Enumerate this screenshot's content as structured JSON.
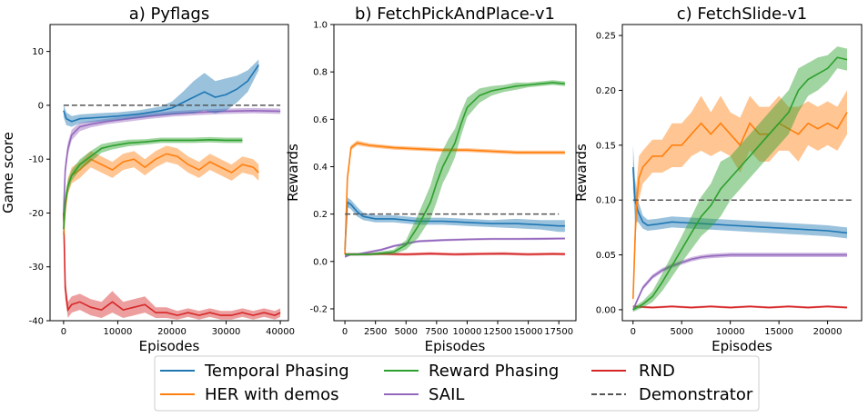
{
  "colors": {
    "temporal_phasing": "#1f77b4",
    "her_with_demos": "#ff7f0e",
    "reward_phasing": "#2ca02c",
    "sail": "#9467bd",
    "rnd": "#d62728",
    "demonstrator": "#555555"
  },
  "legend": {
    "entries": [
      {
        "key": "temporal_phasing",
        "label": "Temporal Phasing",
        "style": "solid"
      },
      {
        "key": "her_with_demos",
        "label": "HER with demos",
        "style": "solid"
      },
      {
        "key": "reward_phasing",
        "label": "Reward Phasing",
        "style": "solid"
      },
      {
        "key": "sail",
        "label": "SAIL",
        "style": "solid"
      },
      {
        "key": "rnd",
        "label": "RND",
        "style": "solid"
      },
      {
        "key": "demonstrator",
        "label": "Demonstrator",
        "style": "dashed"
      }
    ]
  },
  "chart_data": [
    {
      "type": "line",
      "title": "a) Pyflags",
      "xlabel": "Episodes",
      "ylabel": "Game score",
      "xlim": [
        -2500,
        41500
      ],
      "ylim": [
        -40,
        15
      ],
      "xticks": [
        0,
        10000,
        20000,
        30000,
        40000
      ],
      "yticks": [
        -40,
        -30,
        -20,
        -10,
        0,
        10
      ],
      "series": [
        {
          "key": "temporal_phasing",
          "name": "Temporal Phasing",
          "x": [
            0,
            500,
            1500,
            3000,
            6000,
            10000,
            14000,
            18000,
            20000,
            22000,
            24000,
            26000,
            28000,
            30000,
            32000,
            34000,
            35000,
            36000
          ],
          "y": [
            -1,
            -2.5,
            -3,
            -2.5,
            -2.3,
            -2,
            -1.6,
            -1,
            -0.5,
            0.5,
            1.5,
            2.5,
            1.5,
            2,
            3,
            4.5,
            6,
            7.5
          ],
          "band": [
            1.2,
            1.2,
            1,
            0.8,
            0.8,
            0.7,
            0.7,
            0.8,
            1.2,
            2,
            3,
            3.5,
            3,
            3,
            2.5,
            2,
            1.5,
            1
          ]
        },
        {
          "key": "her_with_demos",
          "name": "HER with demos",
          "x": [
            0,
            300,
            800,
            1500,
            3000,
            5000,
            7000,
            9000,
            11000,
            13000,
            15000,
            17000,
            19000,
            21000,
            23000,
            25000,
            27000,
            29000,
            31000,
            33000,
            35000,
            36000
          ],
          "y": [
            -24,
            -19,
            -15,
            -13,
            -12,
            -10,
            -11,
            -12,
            -10.5,
            -10,
            -11.5,
            -10,
            -9,
            -9.5,
            -11,
            -12,
            -10.5,
            -11.5,
            -12.5,
            -11,
            -11.5,
            -12.5
          ],
          "band": [
            2,
            2,
            1.5,
            1.5,
            1.5,
            1.5,
            1.5,
            1.5,
            1.5,
            1.5,
            1.5,
            1.5,
            1.5,
            1.5,
            1.5,
            1.5,
            1.5,
            1.5,
            1.5,
            1.5,
            1.5,
            1.5
          ]
        },
        {
          "key": "reward_phasing",
          "name": "Reward Phasing",
          "x": [
            0,
            300,
            800,
            1500,
            3000,
            5000,
            7000,
            9000,
            12000,
            15000,
            18000,
            21000,
            24000,
            27000,
            30000,
            33000
          ],
          "y": [
            -23,
            -18,
            -15,
            -13,
            -11,
            -9.5,
            -8,
            -7.5,
            -7,
            -6.8,
            -6.5,
            -6.5,
            -6.5,
            -6.4,
            -6.5,
            -6.5
          ],
          "band": [
            2,
            1.5,
            1.2,
            1,
            1,
            1,
            0.8,
            0.7,
            0.6,
            0.5,
            0.5,
            0.5,
            0.5,
            0.5,
            0.5,
            0.5
          ]
        },
        {
          "key": "sail",
          "name": "SAIL",
          "x": [
            0,
            300,
            800,
            1500,
            3000,
            5000,
            8000,
            12000,
            16000,
            20000,
            25000,
            30000,
            35000,
            40000
          ],
          "y": [
            -20,
            -12,
            -8,
            -5.5,
            -4,
            -3.5,
            -3,
            -2.5,
            -2,
            -1.6,
            -1.3,
            -1.1,
            -1,
            -1.1
          ],
          "band": [
            2,
            1.5,
            1.2,
            1,
            0.8,
            0.6,
            0.5,
            0.5,
            0.5,
            0.5,
            0.5,
            0.5,
            0.5,
            0.5
          ]
        },
        {
          "key": "rnd",
          "name": "RND",
          "x": [
            0,
            300,
            800,
            1500,
            3000,
            5000,
            7000,
            9000,
            11000,
            13000,
            15000,
            17000,
            19000,
            21000,
            23000,
            25000,
            27000,
            29000,
            31000,
            33000,
            35000,
            37000,
            39000,
            40000
          ],
          "y": [
            -20,
            -34,
            -38,
            -37,
            -36.5,
            -37.5,
            -38,
            -36.5,
            -38,
            -37.5,
            -37,
            -38.5,
            -38.5,
            -39,
            -38.5,
            -39,
            -38.5,
            -39,
            -39,
            -38.5,
            -39,
            -38.5,
            -39,
            -38.5
          ],
          "band": [
            4,
            2,
            1.5,
            1.5,
            1.5,
            1.5,
            1.5,
            2,
            1.5,
            1.5,
            1.5,
            1,
            1,
            0.8,
            0.8,
            0.8,
            0.8,
            0.8,
            0.8,
            0.8,
            0.8,
            0.8,
            0.8,
            0.8
          ]
        },
        {
          "key": "demonstrator",
          "name": "Demonstrator",
          "dashed": true,
          "x": [
            0,
            40000
          ],
          "y": [
            0,
            0
          ]
        }
      ]
    },
    {
      "type": "line",
      "title": "b) FetchPickAndPlace-v1",
      "xlabel": "Episodes",
      "ylabel": "Rewards",
      "xlim": [
        -900,
        18900
      ],
      "ylim": [
        -0.25,
        1.0
      ],
      "xticks": [
        0,
        2500,
        5000,
        7500,
        10000,
        12500,
        15000,
        17500
      ],
      "yticks": [
        -0.2,
        0.0,
        0.2,
        0.4,
        0.6,
        0.8,
        1.0
      ],
      "series": [
        {
          "key": "temporal_phasing",
          "name": "Temporal Phasing",
          "x": [
            0,
            200,
            500,
            1000,
            1500,
            2500,
            4000,
            6000,
            8000,
            10000,
            12000,
            14000,
            16000,
            17500,
            18000
          ],
          "y": [
            0.05,
            0.25,
            0.24,
            0.21,
            0.19,
            0.18,
            0.18,
            0.17,
            0.17,
            0.165,
            0.16,
            0.16,
            0.155,
            0.15,
            0.15
          ],
          "band": [
            0.02,
            0.02,
            0.02,
            0.02,
            0.015,
            0.015,
            0.015,
            0.015,
            0.015,
            0.015,
            0.015,
            0.02,
            0.02,
            0.025,
            0.025
          ]
        },
        {
          "key": "her_with_demos",
          "name": "HER with demos",
          "x": [
            0,
            200,
            500,
            1000,
            2000,
            4000,
            6000,
            8000,
            10000,
            12000,
            14000,
            16000,
            18000
          ],
          "y": [
            0.03,
            0.35,
            0.48,
            0.5,
            0.49,
            0.48,
            0.475,
            0.47,
            0.47,
            0.465,
            0.46,
            0.46,
            0.46
          ],
          "band": [
            0.01,
            0.02,
            0.01,
            0.01,
            0.008,
            0.008,
            0.008,
            0.008,
            0.008,
            0.008,
            0.008,
            0.008,
            0.008
          ]
        },
        {
          "key": "reward_phasing",
          "name": "Reward Phasing",
          "x": [
            0,
            2000,
            4000,
            5000,
            6000,
            6500,
            7000,
            7500,
            8000,
            8500,
            9000,
            9500,
            10000,
            11000,
            12000,
            13000,
            14000,
            15000,
            16000,
            17000,
            18000
          ],
          "y": [
            0.03,
            0.03,
            0.04,
            0.07,
            0.15,
            0.2,
            0.25,
            0.33,
            0.4,
            0.45,
            0.5,
            0.58,
            0.65,
            0.7,
            0.72,
            0.73,
            0.74,
            0.745,
            0.75,
            0.755,
            0.75
          ],
          "band": [
            0.005,
            0.005,
            0.01,
            0.02,
            0.05,
            0.06,
            0.07,
            0.08,
            0.07,
            0.07,
            0.06,
            0.05,
            0.04,
            0.03,
            0.02,
            0.015,
            0.015,
            0.01,
            0.01,
            0.01,
            0.01
          ]
        },
        {
          "key": "sail",
          "name": "SAIL",
          "x": [
            0,
            500,
            1000,
            2000,
            3000,
            4000,
            5000,
            6000,
            8000,
            10000,
            12000,
            14000,
            16000,
            18000
          ],
          "y": [
            0.02,
            0.03,
            0.03,
            0.04,
            0.05,
            0.065,
            0.075,
            0.085,
            0.09,
            0.093,
            0.095,
            0.095,
            0.096,
            0.097
          ],
          "band": [
            0.005,
            0.005,
            0.005,
            0.005,
            0.005,
            0.005,
            0.005,
            0.005,
            0.005,
            0.005,
            0.005,
            0.005,
            0.005,
            0.005
          ]
        },
        {
          "key": "rnd",
          "name": "RND",
          "x": [
            0,
            1000,
            3000,
            5000,
            7000,
            9000,
            11000,
            13000,
            15000,
            17000,
            18000
          ],
          "y": [
            0.03,
            0.03,
            0.032,
            0.03,
            0.033,
            0.03,
            0.032,
            0.033,
            0.03,
            0.032,
            0.031
          ],
          "band": [
            0.006,
            0.006,
            0.006,
            0.006,
            0.006,
            0.006,
            0.006,
            0.006,
            0.006,
            0.006,
            0.006
          ]
        },
        {
          "key": "demonstrator",
          "name": "Demonstrator",
          "dashed": true,
          "x": [
            0,
            17500
          ],
          "y": [
            0.2,
            0.2
          ]
        }
      ]
    },
    {
      "type": "line",
      "title": "c) FetchSlide-v1",
      "xlabel": "Episodes",
      "ylabel": "Rewards",
      "xlim": [
        -1100,
        23500
      ],
      "ylim": [
        -0.01,
        0.26
      ],
      "xticks": [
        0,
        5000,
        10000,
        15000,
        20000
      ],
      "yticks": [
        0.0,
        0.05,
        0.1,
        0.15,
        0.2,
        0.25
      ],
      "series": [
        {
          "key": "temporal_phasing",
          "name": "Temporal Phasing",
          "x": [
            0,
            200,
            500,
            1000,
            1500,
            2500,
            4000,
            6000,
            8000,
            10000,
            12000,
            14000,
            16000,
            18000,
            20000,
            22000
          ],
          "y": [
            0.13,
            0.1,
            0.09,
            0.08,
            0.077,
            0.078,
            0.08,
            0.079,
            0.078,
            0.077,
            0.076,
            0.075,
            0.074,
            0.073,
            0.072,
            0.07
          ],
          "band": [
            0.02,
            0.02,
            0.01,
            0.006,
            0.005,
            0.005,
            0.005,
            0.005,
            0.005,
            0.005,
            0.005,
            0.005,
            0.005,
            0.005,
            0.005,
            0.005
          ]
        },
        {
          "key": "her_with_demos",
          "name": "HER with demos",
          "x": [
            0,
            300,
            600,
            1000,
            1500,
            2000,
            3000,
            4000,
            5000,
            6000,
            7000,
            8000,
            9000,
            10000,
            11000,
            12000,
            13000,
            14000,
            15000,
            16000,
            17000,
            18000,
            19000,
            20000,
            21000,
            22000
          ],
          "y": [
            0.01,
            0.09,
            0.12,
            0.13,
            0.135,
            0.14,
            0.14,
            0.15,
            0.15,
            0.16,
            0.17,
            0.16,
            0.17,
            0.16,
            0.15,
            0.17,
            0.16,
            0.16,
            0.17,
            0.165,
            0.16,
            0.17,
            0.165,
            0.17,
            0.165,
            0.18
          ],
          "band": [
            0.01,
            0.02,
            0.02,
            0.015,
            0.015,
            0.015,
            0.015,
            0.02,
            0.02,
            0.02,
            0.025,
            0.02,
            0.025,
            0.02,
            0.025,
            0.025,
            0.025,
            0.025,
            0.025,
            0.02,
            0.025,
            0.02,
            0.02,
            0.02,
            0.02,
            0.02
          ]
        },
        {
          "key": "reward_phasing",
          "name": "Reward Phasing",
          "x": [
            0,
            1000,
            2000,
            3000,
            4000,
            5000,
            6000,
            7000,
            8000,
            9000,
            10000,
            11000,
            12000,
            13000,
            14000,
            15000,
            16000,
            17000,
            18000,
            19000,
            20000,
            21000,
            22000
          ],
          "y": [
            0.0,
            0.005,
            0.012,
            0.025,
            0.04,
            0.055,
            0.07,
            0.085,
            0.095,
            0.11,
            0.12,
            0.13,
            0.14,
            0.15,
            0.16,
            0.17,
            0.18,
            0.2,
            0.21,
            0.215,
            0.22,
            0.23,
            0.228
          ],
          "band": [
            0.002,
            0.003,
            0.005,
            0.008,
            0.01,
            0.012,
            0.015,
            0.018,
            0.02,
            0.025,
            0.02,
            0.02,
            0.02,
            0.02,
            0.02,
            0.02,
            0.02,
            0.02,
            0.015,
            0.015,
            0.012,
            0.01,
            0.01
          ]
        },
        {
          "key": "sail",
          "name": "SAIL",
          "x": [
            0,
            500,
            1000,
            2000,
            3000,
            4000,
            5000,
            6000,
            7000,
            8000,
            10000,
            12000,
            14000,
            16000,
            18000,
            20000,
            22000
          ],
          "y": [
            0.0,
            0.01,
            0.02,
            0.03,
            0.036,
            0.04,
            0.043,
            0.046,
            0.048,
            0.049,
            0.05,
            0.05,
            0.05,
            0.05,
            0.05,
            0.05,
            0.05
          ],
          "band": [
            0.002,
            0.002,
            0.002,
            0.002,
            0.002,
            0.002,
            0.002,
            0.002,
            0.002,
            0.002,
            0.002,
            0.002,
            0.002,
            0.002,
            0.002,
            0.002,
            0.002
          ]
        },
        {
          "key": "rnd",
          "name": "RND",
          "x": [
            0,
            2000,
            4000,
            6000,
            8000,
            10000,
            12000,
            14000,
            16000,
            18000,
            20000,
            22000
          ],
          "y": [
            0.003,
            0.002,
            0.003,
            0.002,
            0.003,
            0.002,
            0.003,
            0.002,
            0.003,
            0.002,
            0.003,
            0.002
          ],
          "band": [
            0.001,
            0.001,
            0.001,
            0.001,
            0.001,
            0.001,
            0.001,
            0.001,
            0.001,
            0.001,
            0.001,
            0.001
          ]
        },
        {
          "key": "demonstrator",
          "name": "Demonstrator",
          "dashed": true,
          "x": [
            0,
            22500
          ],
          "y": [
            0.1,
            0.1
          ]
        }
      ]
    }
  ]
}
